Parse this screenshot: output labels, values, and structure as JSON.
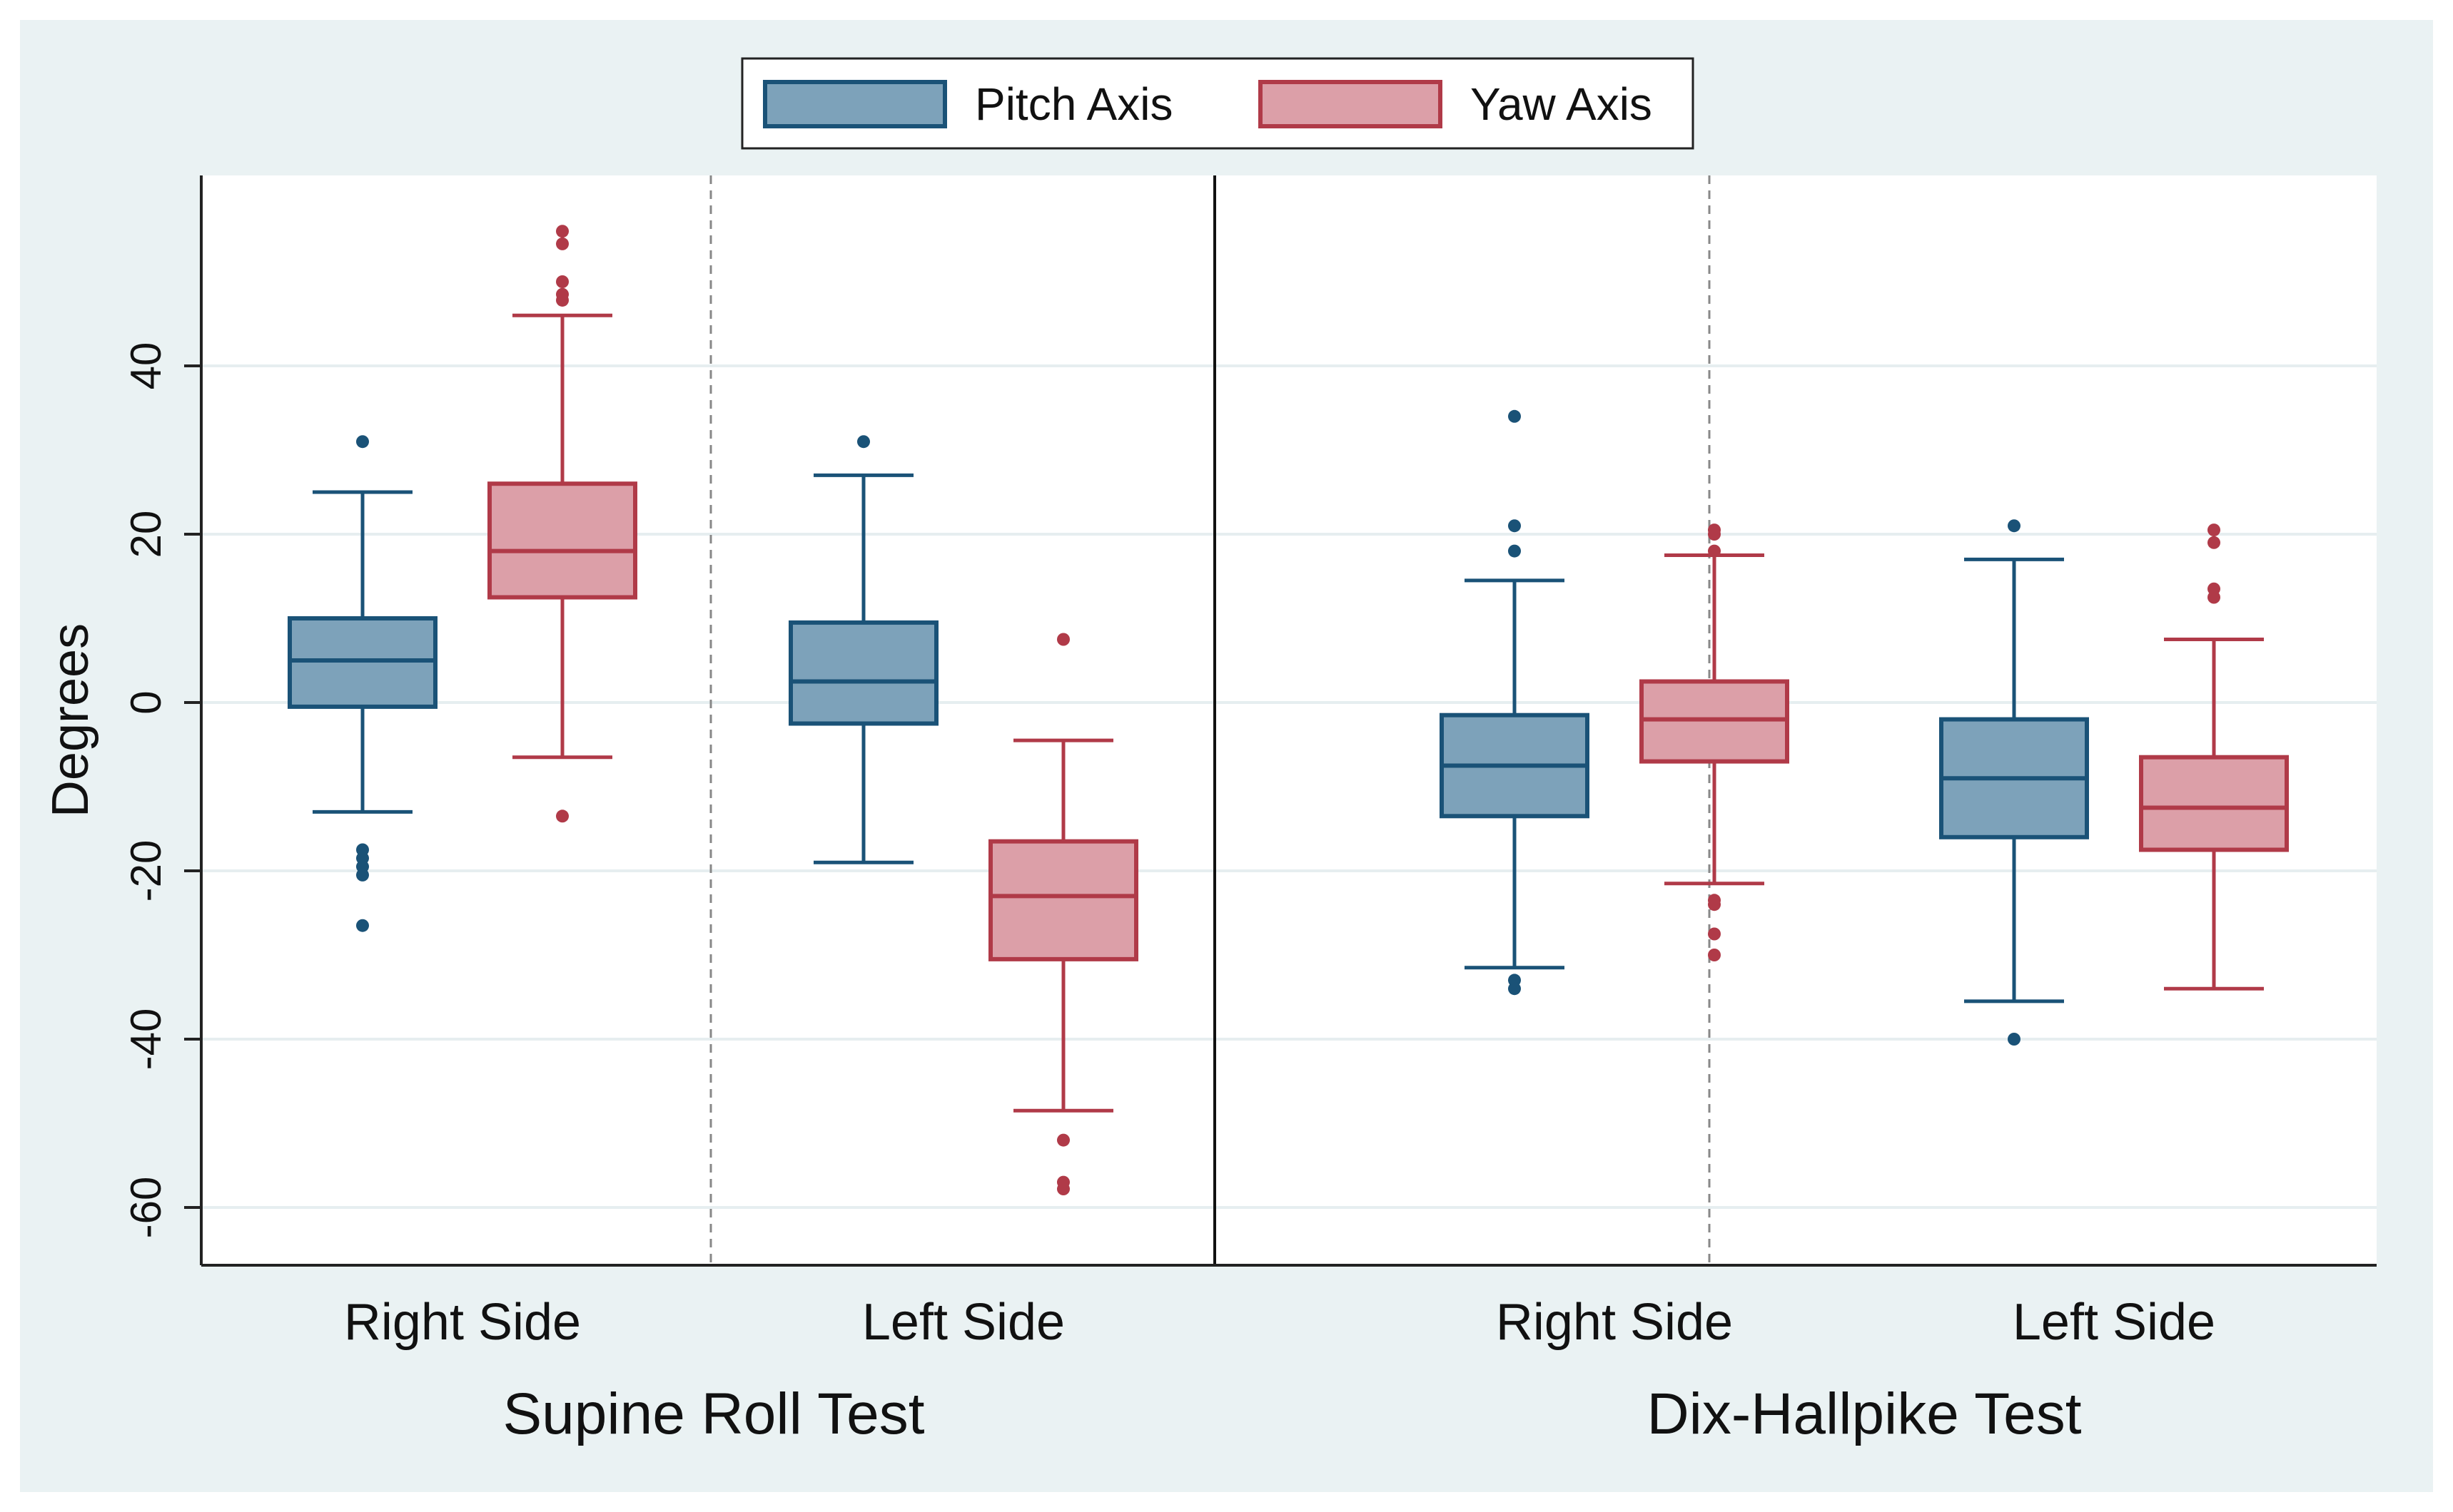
{
  "chart_data": {
    "type": "boxplot",
    "ylabel": "Degrees",
    "ylim": [
      -67,
      62
    ],
    "yticks": [
      -60,
      -40,
      -20,
      0,
      20,
      40
    ],
    "ytick_labels": [
      "-60",
      "-40",
      "-20",
      "0",
      "20",
      "40"
    ],
    "legend": {
      "position": "top-center",
      "entries": [
        {
          "name": "Pitch Axis",
          "color": "#7da2ba",
          "edge": "#1a5277"
        },
        {
          "name": "Yaw Axis",
          "color": "#dc9fa8",
          "edge": "#b03a48"
        }
      ]
    },
    "panels": [
      {
        "title": "Supine Roll Test",
        "groups": [
          {
            "label": "Right Side",
            "boxes": [
              {
                "series": "Pitch Axis",
                "q1": -0.5,
                "median": 5,
                "q3": 10,
                "whisker_low": -13,
                "whisker_high": 25,
                "outliers": [
                  31,
                  -17.5,
                  -18.5,
                  -19.5,
                  -20.5,
                  -26.5
                ]
              },
              {
                "series": "Yaw Axis",
                "q1": 12.5,
                "median": 18,
                "q3": 26,
                "whisker_low": -6.5,
                "whisker_high": 46,
                "outliers": [
                  56,
                  54.5,
                  50,
                  48.5,
                  47.8,
                  -13.5
                ]
              }
            ]
          },
          {
            "label": "Left Side",
            "boxes": [
              {
                "series": "Pitch Axis",
                "q1": -2.5,
                "median": 2.5,
                "q3": 9.5,
                "whisker_low": -19,
                "whisker_high": 27,
                "outliers": [
                  31
                ]
              },
              {
                "series": "Yaw Axis",
                "q1": -30.5,
                "median": -23,
                "q3": -16.5,
                "whisker_low": -48.5,
                "whisker_high": -4.5,
                "outliers": [
                  7.5,
                  -52,
                  -57,
                  -57.8
                ]
              }
            ]
          }
        ]
      },
      {
        "title": "Dix-Hallpike Test",
        "groups": [
          {
            "label": "Right Side",
            "boxes": [
              {
                "series": "Pitch Axis",
                "q1": -13.5,
                "median": -7.5,
                "q3": -1.5,
                "whisker_low": -31.5,
                "whisker_high": 14.5,
                "outliers": [
                  34,
                  21,
                  18,
                  -33,
                  -34
                ]
              },
              {
                "series": "Yaw Axis",
                "q1": -7,
                "median": -2,
                "q3": 2.5,
                "whisker_low": -21.5,
                "whisker_high": 17.5,
                "outliers": [
                  20.5,
                  20,
                  18,
                  -23.5,
                  -24,
                  -27.5,
                  -30
                ]
              }
            ]
          },
          {
            "label": "Left Side",
            "boxes": [
              {
                "series": "Pitch Axis",
                "q1": -16,
                "median": -9,
                "q3": -2,
                "whisker_low": -35.5,
                "whisker_high": 17,
                "outliers": [
                  21,
                  -40
                ]
              },
              {
                "series": "Yaw Axis",
                "q1": -17.5,
                "median": -12.5,
                "q3": -6.5,
                "whisker_low": -34,
                "whisker_high": 7.5,
                "outliers": [
                  20.5,
                  19,
                  13.5,
                  12.5
                ]
              }
            ]
          }
        ]
      }
    ]
  }
}
